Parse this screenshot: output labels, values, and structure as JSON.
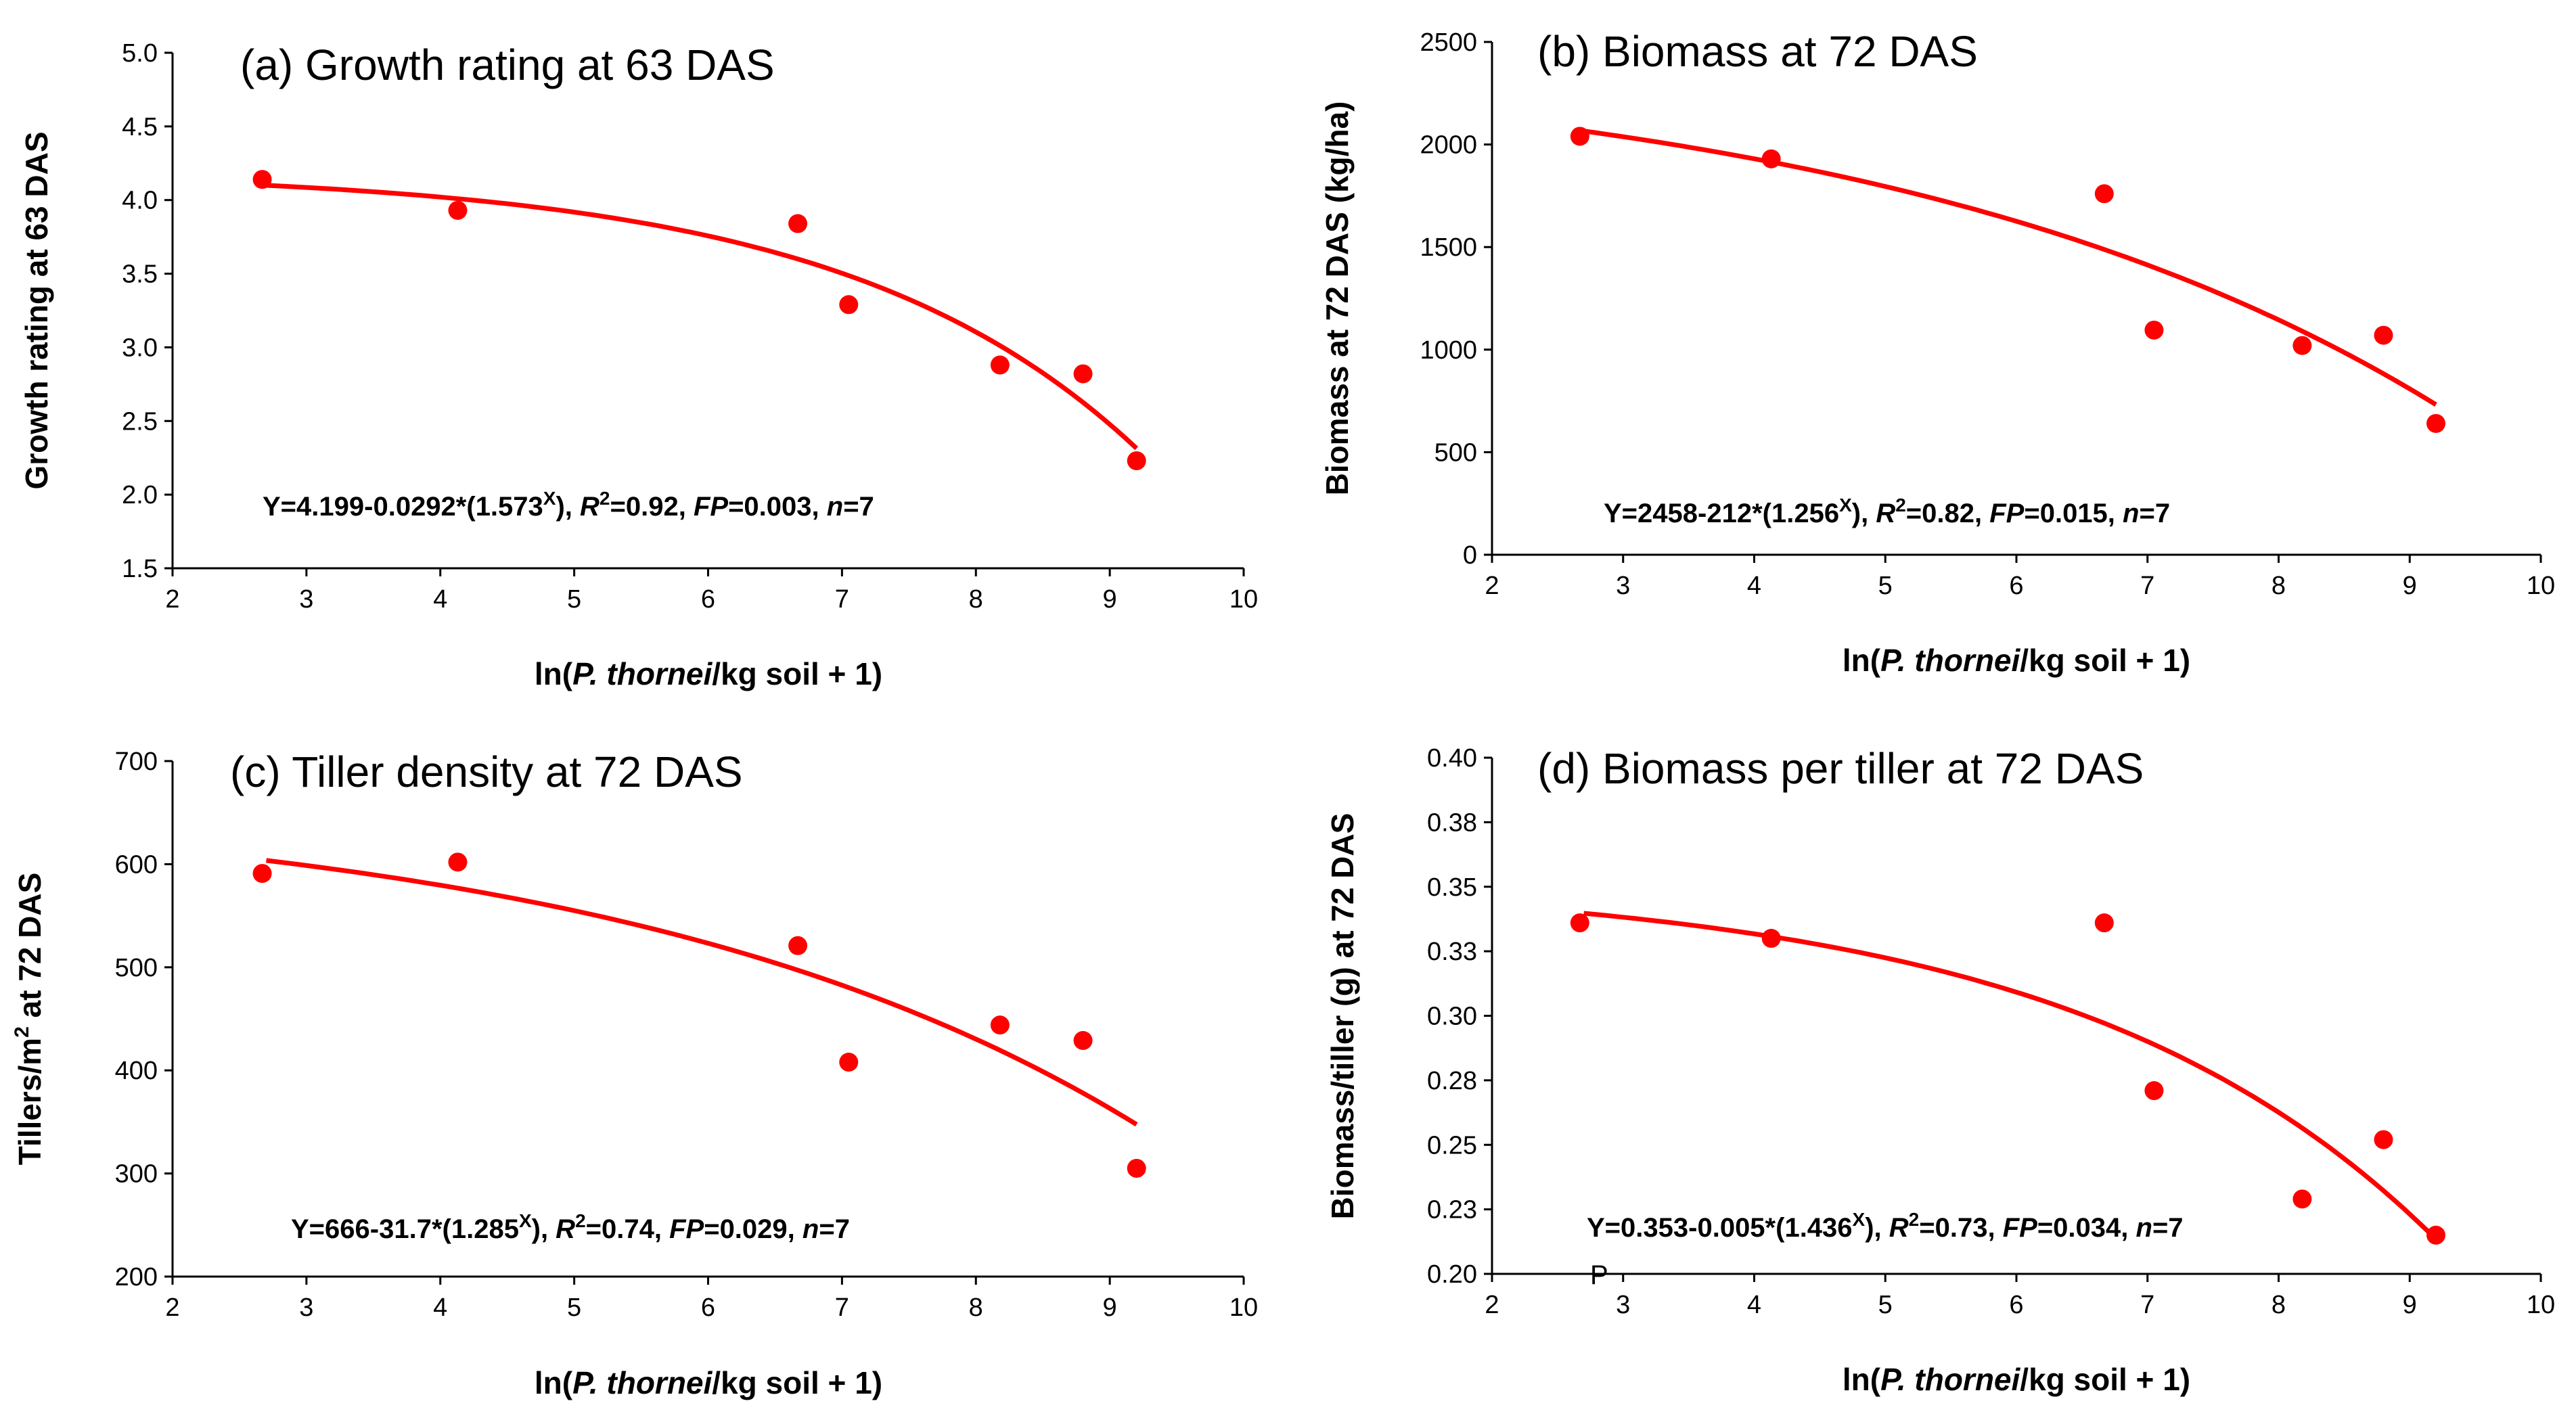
{
  "chart_data": [
    {
      "type": "scatter",
      "title": "(a) Growth rating at 63 DAS",
      "xlabel": {
        "pre": "ln(",
        "italic": "P. thornei",
        "post": "/kg soil + 1)"
      },
      "ylabel": "Growth rating at 63  DAS",
      "xlim": [
        2,
        10
      ],
      "ylim": [
        1.5,
        5.0
      ],
      "x_ticks": [
        "2",
        "3",
        "4",
        "5",
        "6",
        "7",
        "8",
        "9",
        "10"
      ],
      "y_ticks": [
        "1.5",
        "2.0",
        "2.5",
        "3.0",
        "3.5",
        "4.0",
        "4.5",
        "5.0"
      ],
      "points": [
        [
          2.67,
          4.14
        ],
        [
          4.13,
          3.93
        ],
        [
          6.67,
          3.84
        ],
        [
          7.05,
          3.29
        ],
        [
          8.18,
          2.88
        ],
        [
          8.8,
          2.82
        ],
        [
          9.2,
          2.23
        ]
      ],
      "fit": {
        "a": 4.199,
        "b": 0.0292,
        "c": 1.573,
        "x_range": [
          2.7,
          9.2
        ]
      },
      "equation": {
        "lead": "Y=4.199-0.0292*(1.573",
        "sup": "X",
        "r2": "=0.92, ",
        "fp": "=0.003, ",
        "n": "=7"
      },
      "color": "#ff0000"
    },
    {
      "type": "scatter",
      "title": "(b) Biomass at 72 DAS",
      "xlabel": {
        "pre": "ln(",
        "italic": "P. thornei",
        "post": "/kg soil + 1)"
      },
      "ylabel": "Biomass at 72 DAS  (kg/ha)",
      "xlim": [
        2,
        10
      ],
      "ylim": [
        0,
        2500
      ],
      "x_ticks": [
        "2",
        "3",
        "4",
        "5",
        "6",
        "7",
        "8",
        "9",
        "10"
      ],
      "y_ticks": [
        "0",
        "500",
        "1000",
        "1500",
        "2000",
        "2500"
      ],
      "points": [
        [
          2.67,
          2040
        ],
        [
          4.13,
          1930
        ],
        [
          6.67,
          1760
        ],
        [
          7.05,
          1095
        ],
        [
          8.18,
          1020
        ],
        [
          8.8,
          1070
        ],
        [
          9.2,
          640
        ]
      ],
      "fit": {
        "a": 2458,
        "b": 212,
        "c": 1.256,
        "x_range": [
          2.7,
          9.2
        ]
      },
      "equation": {
        "lead": "Y=2458-212*(1.256",
        "sup": "X",
        "r2": "=0.82, ",
        "fp": "=0.015, ",
        "n": "=7"
      },
      "color": "#ff0000"
    },
    {
      "type": "scatter",
      "title": "(c) Tiller density at 72 DAS",
      "xlabel": {
        "pre": "ln(",
        "italic": "P. thornei",
        "post": "/kg soil + 1)"
      },
      "ylabel": {
        "pre": "Tillers/m",
        "sup": "2",
        "post": " at 72 DAS"
      },
      "xlim": [
        2,
        10
      ],
      "ylim": [
        200,
        700
      ],
      "x_ticks": [
        "2",
        "3",
        "4",
        "5",
        "6",
        "7",
        "8",
        "9",
        "10"
      ],
      "y_ticks": [
        "200",
        "300",
        "400",
        "500",
        "600",
        "700"
      ],
      "points": [
        [
          2.67,
          591
        ],
        [
          4.13,
          602
        ],
        [
          6.67,
          521
        ],
        [
          7.05,
          408
        ],
        [
          8.18,
          444
        ],
        [
          8.8,
          429
        ],
        [
          9.2,
          305
        ]
      ],
      "fit": {
        "a": 666,
        "b": 31.7,
        "c": 1.285,
        "x_range": [
          2.7,
          9.2
        ]
      },
      "equation": {
        "lead": "Y=666-31.7*(1.285",
        "sup": "X",
        "r2": "=0.74, ",
        "fp": "=0.029, ",
        "n": "=7"
      },
      "color": "#ff0000"
    },
    {
      "type": "scatter",
      "title": "(d) Biomass per tiller at 72 DAS",
      "xlabel": {
        "pre": "ln(",
        "italic": "P. thornei",
        "post": "/kg soil + 1)"
      },
      "ylabel": "Biomass/tiller (g) at 72 DAS",
      "xlim": [
        2,
        10
      ],
      "ylim": [
        0.2,
        0.4
      ],
      "x_ticks": [
        "2",
        "3",
        "4",
        "5",
        "6",
        "7",
        "8",
        "9",
        "10"
      ],
      "y_ticks": [
        "0.20",
        "0.23",
        "0.25",
        "0.28",
        "0.30",
        "0.33",
        "0.35",
        "0.38",
        "0.40"
      ],
      "points": [
        [
          2.67,
          0.336
        ],
        [
          4.13,
          0.33
        ],
        [
          6.67,
          0.336
        ],
        [
          7.05,
          0.271
        ],
        [
          8.18,
          0.229
        ],
        [
          8.8,
          0.252
        ],
        [
          9.2,
          0.215
        ]
      ],
      "fit": {
        "a": 0.353,
        "b": 0.005,
        "c": 1.436,
        "x_range": [
          2.7,
          9.2
        ]
      },
      "equation": {
        "lead": "Y=0.353-0.005*(1.436",
        "sup": "X",
        "r2": "=0.73, ",
        "fp": "=0.034, ",
        "n": "=7"
      },
      "stray_text": "P",
      "color": "#ff0000"
    }
  ]
}
